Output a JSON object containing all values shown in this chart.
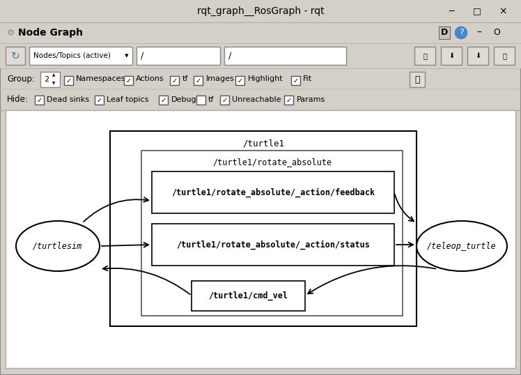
{
  "title": "rqt_graph__RosGraph - rqt",
  "bg_color": "#d4d0c8",
  "canvas_bg": "#ffffff",
  "node_graph_label": "Node Graph",
  "dropdown_text": "Nodes/Topics (active)",
  "slash1": "/",
  "slash2": "/",
  "group_val": "2",
  "checkboxes_row1_labels": [
    "Namespaces",
    "Actions",
    "tf",
    "Images",
    "Highlight",
    "Fit"
  ],
  "checkboxes_row1_checked": [
    true,
    true,
    true,
    true,
    true,
    true
  ],
  "checkboxes_row2_labels": [
    "Dead sinks",
    "Leaf topics",
    "Debug",
    "tf",
    "Unreachable",
    "Params"
  ],
  "checkboxes_row2_checked": [
    true,
    true,
    true,
    false,
    true,
    true
  ],
  "font_monospace": "DejaVu Sans Mono",
  "font_ui": "DejaVu Sans"
}
